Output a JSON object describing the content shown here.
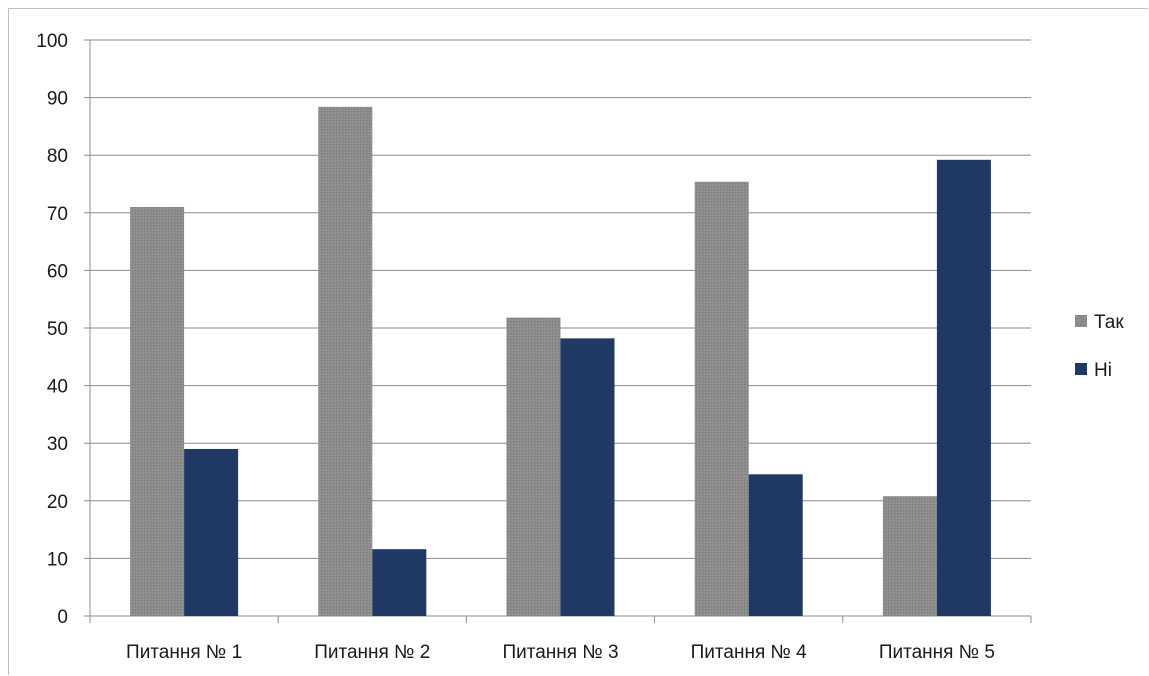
{
  "chart_data": {
    "type": "bar",
    "title": "",
    "xlabel": "",
    "ylabel": "",
    "categories": [
      "Питання № 1",
      "Питання № 2",
      "Питання № 3",
      "Питання № 4",
      "Питання № 5"
    ],
    "series": [
      {
        "name": "Так",
        "values": [
          71,
          88.4,
          51.8,
          75.4,
          20.8
        ],
        "color": "#8c8c8c"
      },
      {
        "name": "Ні",
        "values": [
          29,
          11.6,
          48.2,
          24.6,
          79.2
        ],
        "color": "#1f3864"
      }
    ],
    "ylim": [
      0,
      100
    ],
    "yticks": [
      "0",
      "10",
      "20",
      "30",
      "40",
      "50",
      "60",
      "70",
      "80",
      "90",
      "100"
    ],
    "grid": true,
    "legend": "right"
  }
}
